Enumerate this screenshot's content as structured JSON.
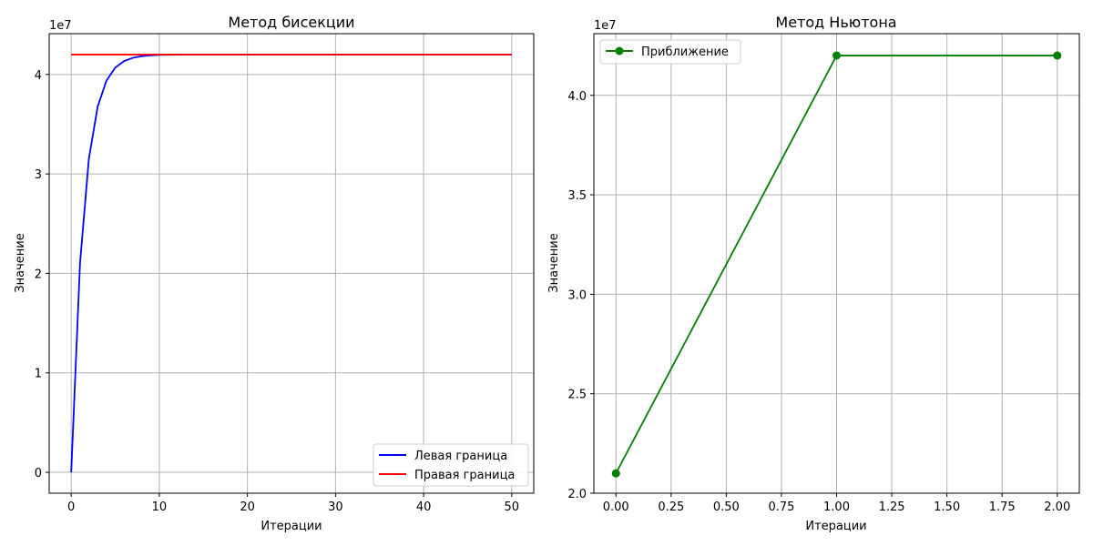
{
  "chart_data": [
    {
      "type": "line",
      "title": "Метод бисекции",
      "xlabel": "Итерации",
      "ylabel": "Значение",
      "offset_label": "1e7",
      "xlim": [
        -2.5,
        52.5
      ],
      "ylim": [
        -0.21,
        4.41
      ],
      "x_ticks": [
        0,
        10,
        20,
        30,
        40,
        50
      ],
      "y_ticks": [
        0,
        1,
        2,
        3,
        4
      ],
      "grid": true,
      "legend_position": "lower-right",
      "series": [
        {
          "name": "Левая граница",
          "color": "#0000ff",
          "x": [
            0,
            1,
            2,
            3,
            4,
            5,
            6,
            7,
            8,
            9,
            10,
            11,
            12,
            13,
            14,
            15,
            16,
            17,
            18,
            19,
            20,
            21,
            22,
            23,
            24,
            25,
            26,
            27,
            28,
            29,
            30,
            31,
            32,
            33,
            34,
            35,
            36,
            37,
            38,
            39,
            40,
            41,
            42,
            43,
            44,
            45,
            46,
            47,
            48,
            49,
            50
          ],
          "y": [
            0,
            2.1,
            3.15,
            3.675,
            3.9375,
            4.06875,
            4.134375,
            4.1671875,
            4.18359,
            4.1918,
            4.1959,
            4.19795,
            4.19898,
            4.19949,
            4.19974,
            4.19987,
            4.19994,
            4.19997,
            4.19998,
            4.19999,
            4.2,
            4.2,
            4.2,
            4.2,
            4.2,
            4.2,
            4.2,
            4.2,
            4.2,
            4.2,
            4.2,
            4.2,
            4.2,
            4.2,
            4.2,
            4.2,
            4.2,
            4.2,
            4.2,
            4.2,
            4.2,
            4.2,
            4.2,
            4.2,
            4.2,
            4.2,
            4.2,
            4.2,
            4.2,
            4.2,
            4.2
          ]
        },
        {
          "name": "Правая граница",
          "color": "#ff0000",
          "x": [
            0,
            50
          ],
          "y": [
            4.2,
            4.2
          ]
        }
      ]
    },
    {
      "type": "line",
      "title": "Метод Ньютона",
      "xlabel": "Итерации",
      "ylabel": "Значение",
      "offset_label": "1e7",
      "xlim": [
        -0.1,
        2.1
      ],
      "ylim": [
        2.0,
        4.31
      ],
      "x_ticks": [
        "0.00",
        "0.25",
        "0.50",
        "0.75",
        "1.00",
        "1.25",
        "1.50",
        "1.75",
        "2.00"
      ],
      "y_ticks": [
        "2.0",
        "2.5",
        "3.0",
        "3.5",
        "4.0"
      ],
      "grid": true,
      "legend_position": "upper-left",
      "series": [
        {
          "name": "Приближение",
          "color": "#008000",
          "marker": "circle",
          "x": [
            0,
            1,
            2
          ],
          "y": [
            2.1,
            4.2,
            4.2
          ]
        }
      ]
    }
  ]
}
